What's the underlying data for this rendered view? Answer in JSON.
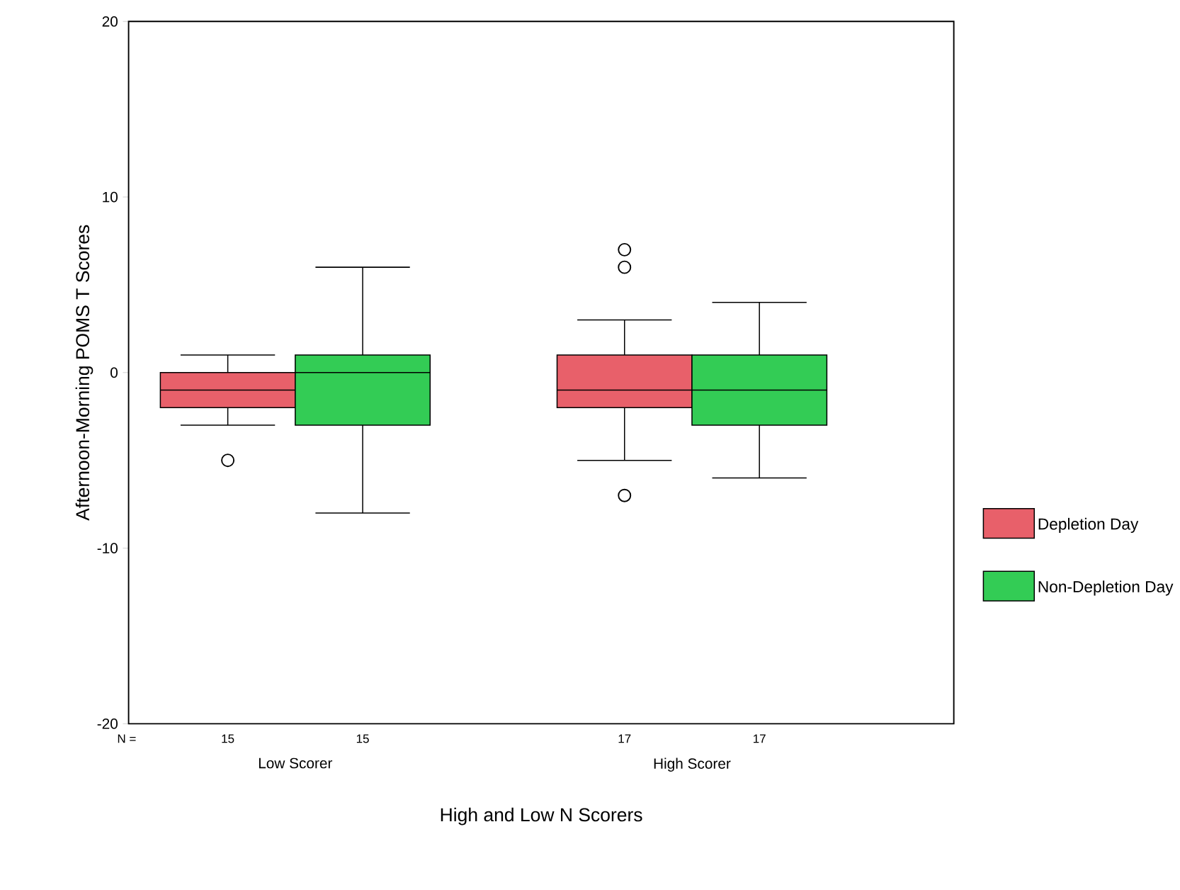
{
  "chart_data": {
    "type": "box",
    "xlabel": "High and Low N Scorers",
    "ylabel": "Afternoon-Morning POMS T Scores",
    "categories": [
      "Low Scorer",
      "High Scorer"
    ],
    "series": [
      {
        "name": "Depletion Day",
        "color": "#e8606a",
        "boxes": [
          {
            "low": -3,
            "q1": -2,
            "median": -1,
            "q3": 0,
            "high": 1,
            "outliers": [
              -5
            ]
          },
          {
            "low": -5,
            "q1": -2,
            "median": -1,
            "q3": 1,
            "high": 3,
            "outliers": [
              6,
              7,
              -7
            ]
          }
        ]
      },
      {
        "name": "Non-Depletion Day",
        "color": "#33cc55",
        "boxes": [
          {
            "low": -8,
            "q1": -3,
            "median": 0,
            "q3": 1,
            "high": 6
          },
          {
            "low": -6,
            "q1": -3,
            "median": -1,
            "q3": 1,
            "high": 4
          }
        ]
      }
    ],
    "ylim": [
      -20,
      20
    ],
    "yticks": [
      -20,
      -10,
      0,
      10,
      20
    ],
    "grid": false,
    "legend": "right",
    "marker": "circle",
    "annotations": [
      "N =",
      "15",
      "15",
      "17",
      "17"
    ]
  }
}
